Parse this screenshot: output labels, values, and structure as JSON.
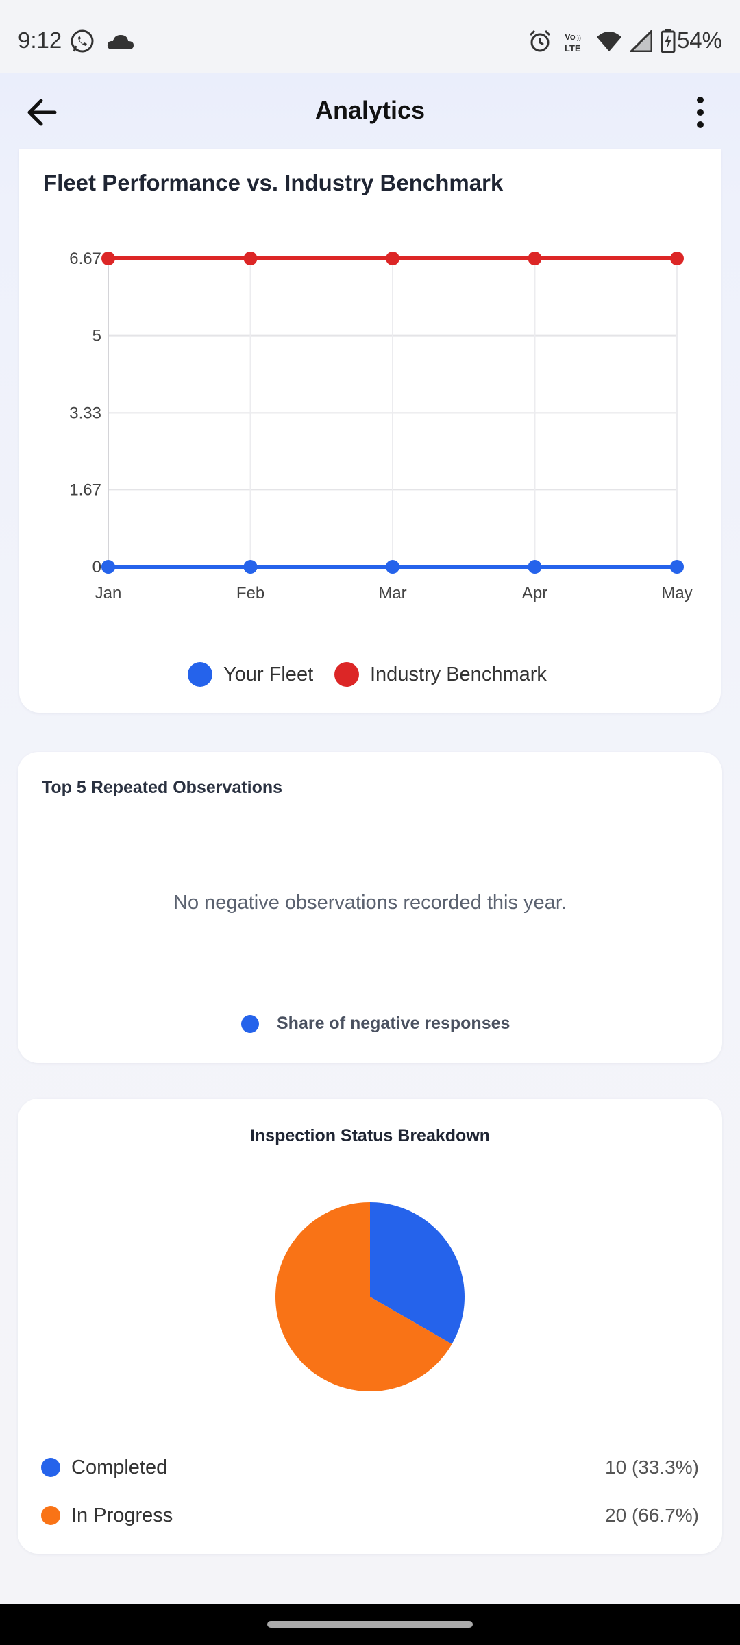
{
  "status_bar": {
    "time": "9:12",
    "battery": "54%",
    "icons": [
      "whatsapp-icon",
      "cloud-icon",
      "alarm-icon",
      "volte-icon",
      "wifi-icon",
      "signal-icon",
      "battery-charging-icon"
    ],
    "volte_label": "Vo LTE"
  },
  "app_bar": {
    "title": "Analytics",
    "back_icon": "arrow-back-icon",
    "more_icon": "more-vertical-icon"
  },
  "fleet_card": {
    "title": "Fleet Performance vs. Industry Benchmark"
  },
  "chart_data": [
    {
      "type": "line",
      "title": "Fleet Performance vs. Industry Benchmark",
      "x": [
        "Jan",
        "Feb",
        "Mar",
        "Apr",
        "May"
      ],
      "y_ticks": [
        "0",
        "1.67",
        "3.33",
        "5",
        "6.67"
      ],
      "ylim": [
        0,
        6.67
      ],
      "grid": true,
      "legend_position": "bottom",
      "series": [
        {
          "name": "Your Fleet",
          "values": [
            0,
            0,
            0,
            0,
            0
          ],
          "color": "#2563eb"
        },
        {
          "name": "Industry Benchmark",
          "values": [
            6.67,
            6.67,
            6.67,
            6.67,
            6.67
          ],
          "color": "#dc2626"
        }
      ]
    },
    {
      "type": "pie",
      "title": "Inspection Status Breakdown",
      "categories": [
        "Completed",
        "In Progress"
      ],
      "values": [
        10,
        20
      ],
      "colors": [
        "#2563eb",
        "#f97316"
      ]
    }
  ],
  "observations_card": {
    "title": "Top 5 Repeated Observations",
    "empty_message": "No negative observations recorded this year.",
    "legend_label": "Share of negative responses",
    "legend_color": "#2563eb"
  },
  "inspection_card": {
    "title": "Inspection Status Breakdown",
    "rows": [
      {
        "label": "Completed",
        "value": "10 (33.3%)",
        "color": "#2563eb"
      },
      {
        "label": "In Progress",
        "value": "20 (66.7%)",
        "color": "#f97316"
      }
    ]
  }
}
